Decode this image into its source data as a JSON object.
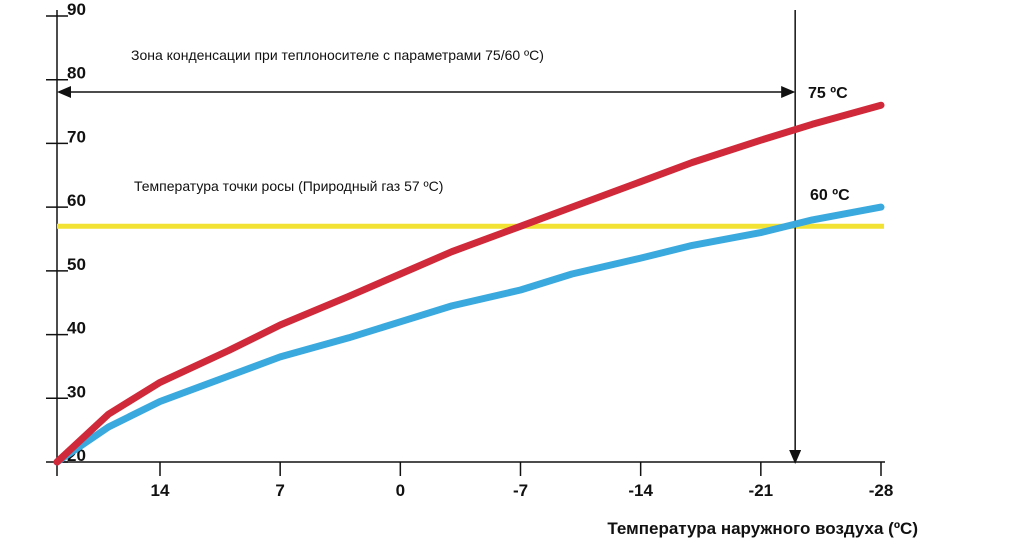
{
  "chart_data": {
    "type": "line",
    "xlabel": "Температура наружного воздуха (ºC)",
    "ylabel": "",
    "xlim": [
      20,
      -28
    ],
    "ylim": [
      20,
      90
    ],
    "x_ticks": [
      14,
      7,
      0,
      -7,
      -14,
      -21,
      -28
    ],
    "x_tick_labels": [
      "14",
      "7",
      "0",
      "-7",
      "-14",
      "-21",
      "-28"
    ],
    "y_ticks": [
      20,
      30,
      40,
      50,
      60,
      70,
      80,
      90
    ],
    "y_tick_labels": [
      "20",
      "30",
      "40",
      "50",
      "60",
      "70",
      "80",
      "90"
    ],
    "series": [
      {
        "name": "75 ºC",
        "color": "#d0293a",
        "x": [
          20,
          17,
          14,
          10,
          7,
          3,
          0,
          -3,
          -7,
          -10,
          -14,
          -17,
          -21,
          -24,
          -28
        ],
        "y": [
          20,
          27.5,
          32.5,
          37.5,
          41.5,
          46,
          49.5,
          53,
          57,
          60,
          64,
          67,
          70.5,
          73,
          76
        ]
      },
      {
        "name": "60 ºC",
        "color": "#3aa9de",
        "x": [
          20,
          17,
          14,
          10,
          7,
          3,
          0,
          -3,
          -7,
          -10,
          -14,
          -17,
          -21,
          -24,
          -28
        ],
        "y": [
          20,
          25.5,
          29.5,
          33.5,
          36.5,
          39.5,
          42,
          44.5,
          47,
          49.5,
          52,
          54,
          56,
          58,
          60
        ]
      }
    ],
    "reference_lines": [
      {
        "kind": "horizontal",
        "y": 57,
        "color": "#f2e233"
      },
      {
        "kind": "vertical",
        "x": -23,
        "color": "#111111"
      }
    ],
    "annotations": {
      "condensation_zone": "Зона конденсации при теплоносителе с параметрами 75/60 ºC)",
      "dew_point": "Температура точки росы (Природный газ 57 ºC)"
    },
    "grid": false,
    "legend": "inline-right"
  }
}
